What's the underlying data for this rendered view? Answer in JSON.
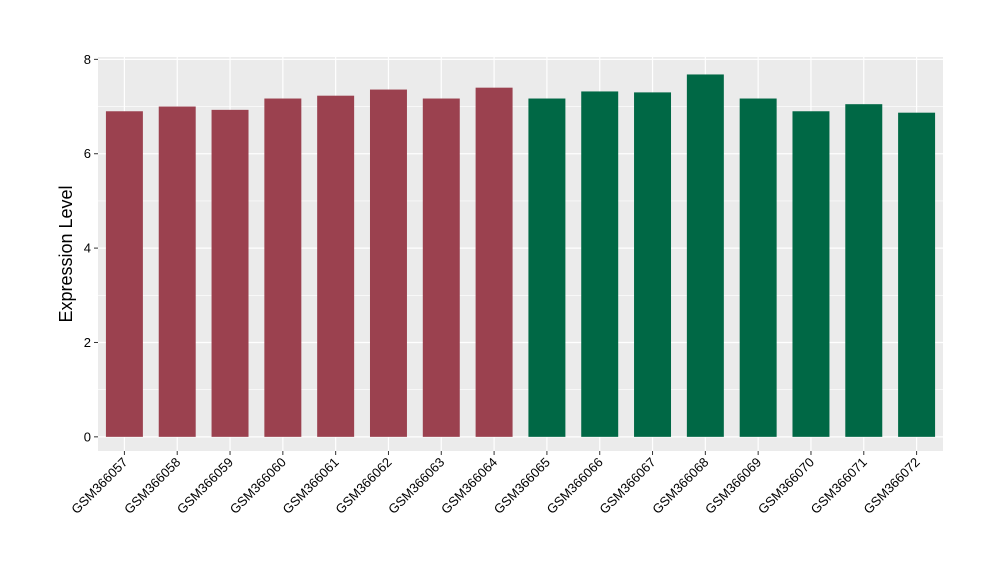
{
  "chart_data": {
    "type": "bar",
    "title": "",
    "xlabel": "",
    "ylabel": "Expression Level",
    "ylim": [
      -0.3,
      8.05
    ],
    "yticks": [
      0,
      2,
      4,
      6,
      8
    ],
    "grid": true,
    "legend": "none",
    "categories": [
      "GSM366057",
      "GSM366058",
      "GSM366059",
      "GSM366060",
      "GSM366061",
      "GSM366062",
      "GSM366063",
      "GSM366064",
      "GSM366065",
      "GSM366066",
      "GSM366067",
      "GSM366068",
      "GSM366069",
      "GSM366070",
      "GSM366071",
      "GSM366072"
    ],
    "values": [
      6.9,
      7.0,
      6.93,
      7.17,
      7.23,
      7.36,
      7.17,
      7.4,
      7.17,
      7.32,
      7.3,
      7.68,
      7.17,
      6.9,
      7.05,
      6.87
    ],
    "group_colors": [
      "#9b414f",
      "#9b414f",
      "#9b414f",
      "#9b414f",
      "#9b414f",
      "#9b414f",
      "#9b414f",
      "#9b414f",
      "#006845",
      "#006845",
      "#006845",
      "#006845",
      "#006845",
      "#006845",
      "#006845",
      "#006845"
    ],
    "panel_background": "#ebebeb",
    "grid_color": "#ffffff"
  }
}
